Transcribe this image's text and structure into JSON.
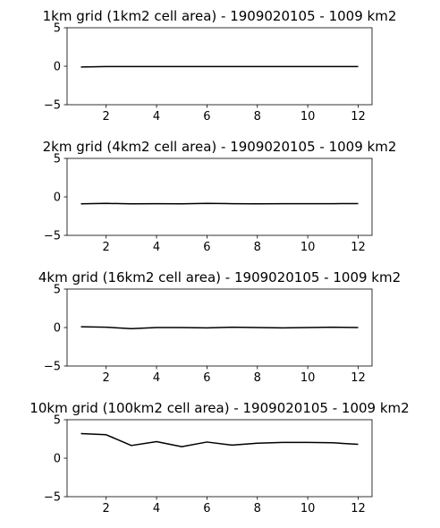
{
  "chart_data": [
    {
      "type": "line",
      "title": "1km grid (1km2 cell area) - 1909020105 - 1009 km2",
      "x": [
        1,
        2,
        3,
        4,
        5,
        6,
        7,
        8,
        9,
        10,
        11,
        12
      ],
      "series": [
        {
          "values": [
            -0.1,
            -0.05,
            -0.05,
            -0.05,
            -0.05,
            -0.05,
            -0.05,
            -0.05,
            -0.05,
            -0.05,
            -0.05,
            -0.05
          ],
          "color": "#000000"
        }
      ],
      "xlim": [
        0.45,
        12.55
      ],
      "ylim": [
        -5,
        5
      ],
      "xticks": [
        2,
        4,
        6,
        8,
        10,
        12
      ],
      "yticks": [
        -5,
        0,
        5
      ],
      "xtick_labels": [
        "2",
        "4",
        "6",
        "8",
        "10",
        "12"
      ],
      "ytick_labels": [
        "−5",
        "0",
        "5"
      ],
      "grid": false
    },
    {
      "type": "line",
      "title": "2km grid (4km2 cell area) - 1909020105 - 1009 km2",
      "x": [
        1,
        2,
        3,
        4,
        5,
        6,
        7,
        8,
        9,
        10,
        11,
        12
      ],
      "series": [
        {
          "values": [
            -0.9,
            -0.85,
            -0.9,
            -0.88,
            -0.9,
            -0.85,
            -0.88,
            -0.9,
            -0.88,
            -0.88,
            -0.88,
            -0.87
          ],
          "color": "#000000"
        }
      ],
      "xlim": [
        0.45,
        12.55
      ],
      "ylim": [
        -5,
        5
      ],
      "xticks": [
        2,
        4,
        6,
        8,
        10,
        12
      ],
      "yticks": [
        -5,
        0,
        5
      ],
      "xtick_labels": [
        "2",
        "4",
        "6",
        "8",
        "10",
        "12"
      ],
      "ytick_labels": [
        "−5",
        "0",
        "5"
      ],
      "grid": false
    },
    {
      "type": "line",
      "title": "4km grid (16km2 cell area) - 1909020105 - 1009 km2",
      "x": [
        1,
        2,
        3,
        4,
        5,
        6,
        7,
        8,
        9,
        10,
        11,
        12
      ],
      "series": [
        {
          "values": [
            0.1,
            0.05,
            -0.15,
            0.0,
            0.0,
            -0.05,
            0.05,
            0.0,
            -0.05,
            0.0,
            0.05,
            0.0
          ],
          "color": "#000000"
        }
      ],
      "xlim": [
        0.45,
        12.55
      ],
      "ylim": [
        -5,
        5
      ],
      "xticks": [
        2,
        4,
        6,
        8,
        10,
        12
      ],
      "yticks": [
        -5,
        0,
        5
      ],
      "xtick_labels": [
        "2",
        "4",
        "6",
        "8",
        "10",
        "12"
      ],
      "ytick_labels": [
        "−5",
        "0",
        "5"
      ],
      "grid": false
    },
    {
      "type": "line",
      "title": "10km grid (100km2 cell area) - 1909020105 - 1009 km2",
      "x": [
        1,
        2,
        3,
        4,
        5,
        6,
        7,
        8,
        9,
        10,
        11,
        12
      ],
      "series": [
        {
          "values": [
            3.2,
            3.05,
            1.65,
            2.15,
            1.5,
            2.1,
            1.7,
            1.95,
            2.05,
            2.05,
            2.0,
            1.8
          ],
          "color": "#000000"
        }
      ],
      "xlim": [
        0.45,
        12.55
      ],
      "ylim": [
        -5,
        5
      ],
      "xticks": [
        2,
        4,
        6,
        8,
        10,
        12
      ],
      "yticks": [
        -5,
        0,
        5
      ],
      "xtick_labels": [
        "2",
        "4",
        "6",
        "8",
        "10",
        "12"
      ],
      "ytick_labels": [
        "−5",
        "0",
        "5"
      ],
      "grid": false
    }
  ]
}
